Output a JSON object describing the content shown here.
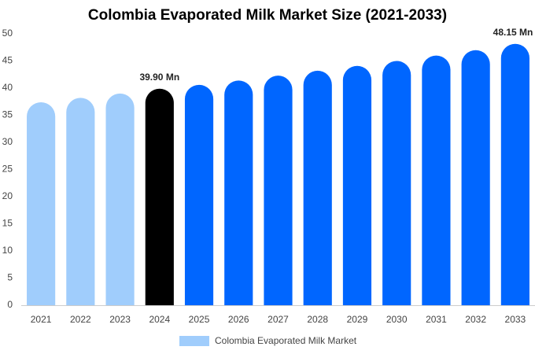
{
  "chart_data": {
    "type": "bar",
    "title": "Colombia Evaporated Milk Market Size (2021-2033)",
    "categories": [
      "2021",
      "2022",
      "2023",
      "2024",
      "2025",
      "2026",
      "2027",
      "2028",
      "2029",
      "2030",
      "2031",
      "2032",
      "2033"
    ],
    "series": [
      {
        "name": "Colombia Evaporated Milk Market",
        "color": "#a0cdfc",
        "values": [
          37.4,
          38.2,
          39.0,
          39.9,
          40.6,
          41.4,
          42.3,
          43.2,
          44.1,
          45.0,
          46.0,
          47.0,
          48.15
        ],
        "value_labels": [
          null,
          null,
          null,
          "39.90 Mn",
          null,
          null,
          null,
          null,
          null,
          null,
          null,
          null,
          "48.15 Mn"
        ],
        "colors": [
          "#a0cdfc",
          "#a0cdfc",
          "#a0cdfc",
          "#000000",
          "#0066ff",
          "#0066ff",
          "#0066ff",
          "#0066ff",
          "#0066ff",
          "#0066ff",
          "#0066ff",
          "#0066ff",
          "#0066ff"
        ]
      }
    ],
    "ylim": [
      0,
      50
    ],
    "yticks": [
      0,
      5,
      10,
      15,
      20,
      25,
      30,
      35,
      40,
      45,
      50
    ],
    "grid": false
  }
}
